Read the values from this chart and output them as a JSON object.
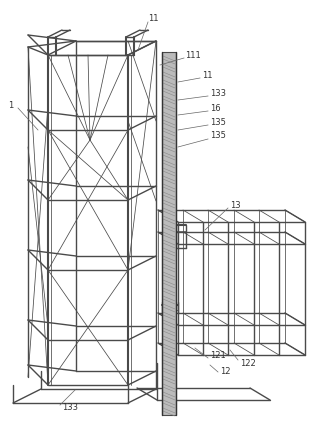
{
  "bg_color": "#ffffff",
  "line_color": "#4a4a4a",
  "label_color": "#333333",
  "lw_main": 1.0,
  "lw_thin": 0.55,
  "lw_thick": 1.5,
  "lw_rail": 0.7,
  "figsize": [
    3.2,
    4.43
  ],
  "dpi": 100,
  "font_size": 6.0,
  "rail_gray": "#bbbbbb",
  "rail_dark": "#888888",
  "struct_gray": "#cccccc"
}
